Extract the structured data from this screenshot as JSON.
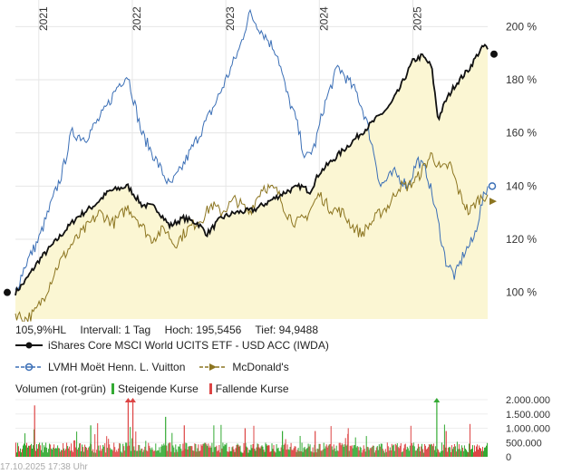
{
  "chart_data": {
    "type": "line",
    "x_axis": {
      "labels": [
        "2021",
        "2022",
        "2023",
        "2024",
        "2025"
      ]
    },
    "y_axis": {
      "ticks": [
        "200 %",
        "180 %",
        "160 %",
        "140 %",
        "120 %",
        "100 %"
      ],
      "tick_values": [
        200,
        180,
        160,
        140,
        120,
        100
      ],
      "ylim": [
        90,
        210
      ],
      "position": "right"
    },
    "grid": true,
    "time_range": [
      2020.75,
      2025.8
    ],
    "series": [
      {
        "name": "iShares Core MSCI World UCITS ETF - USD ACC (IWDA)",
        "color": "#111111",
        "filled": true,
        "fill_color": "#fbf6d3",
        "points": [
          [
            2020.75,
            100
          ],
          [
            2020.85,
            104
          ],
          [
            2021.0,
            112
          ],
          [
            2021.2,
            120
          ],
          [
            2021.4,
            128
          ],
          [
            2021.6,
            133
          ],
          [
            2021.75,
            138
          ],
          [
            2021.95,
            140
          ],
          [
            2022.1,
            133
          ],
          [
            2022.25,
            132
          ],
          [
            2022.4,
            125
          ],
          [
            2022.55,
            128
          ],
          [
            2022.7,
            126
          ],
          [
            2022.8,
            122
          ],
          [
            2022.95,
            128
          ],
          [
            2023.1,
            130
          ],
          [
            2023.3,
            131
          ],
          [
            2023.5,
            135
          ],
          [
            2023.65,
            138
          ],
          [
            2023.8,
            140
          ],
          [
            2023.9,
            138
          ],
          [
            2024.0,
            145
          ],
          [
            2024.15,
            150
          ],
          [
            2024.3,
            155
          ],
          [
            2024.45,
            160
          ],
          [
            2024.6,
            165
          ],
          [
            2024.75,
            170
          ],
          [
            2024.85,
            176
          ],
          [
            2025.0,
            187
          ],
          [
            2025.1,
            189
          ],
          [
            2025.2,
            185
          ],
          [
            2025.27,
            165
          ],
          [
            2025.35,
            172
          ],
          [
            2025.45,
            178
          ],
          [
            2025.6,
            184
          ],
          [
            2025.7,
            190
          ],
          [
            2025.77,
            193
          ],
          [
            2025.8,
            191
          ]
        ]
      },
      {
        "name": "LVMH Moët Henn. L. Vuitton",
        "color": "#3b6fb6",
        "filled": false,
        "points": [
          [
            2020.75,
            100
          ],
          [
            2020.85,
            110
          ],
          [
            2021.0,
            120
          ],
          [
            2021.1,
            130
          ],
          [
            2021.25,
            145
          ],
          [
            2021.35,
            160
          ],
          [
            2021.5,
            158
          ],
          [
            2021.7,
            168
          ],
          [
            2021.85,
            178
          ],
          [
            2021.95,
            182
          ],
          [
            2022.1,
            160
          ],
          [
            2022.25,
            150
          ],
          [
            2022.4,
            140
          ],
          [
            2022.5,
            145
          ],
          [
            2022.65,
            155
          ],
          [
            2022.8,
            165
          ],
          [
            2022.9,
            172
          ],
          [
            2023.0,
            180
          ],
          [
            2023.15,
            192
          ],
          [
            2023.25,
            205
          ],
          [
            2023.35,
            200
          ],
          [
            2023.45,
            195
          ],
          [
            2023.55,
            190
          ],
          [
            2023.65,
            175
          ],
          [
            2023.75,
            165
          ],
          [
            2023.85,
            150
          ],
          [
            2023.95,
            155
          ],
          [
            2024.05,
            170
          ],
          [
            2024.2,
            185
          ],
          [
            2024.3,
            180
          ],
          [
            2024.4,
            175
          ],
          [
            2024.5,
            165
          ],
          [
            2024.6,
            150
          ],
          [
            2024.65,
            140
          ],
          [
            2024.8,
            145
          ],
          [
            2024.95,
            140
          ],
          [
            2025.05,
            150
          ],
          [
            2025.15,
            145
          ],
          [
            2025.25,
            130
          ],
          [
            2025.35,
            112
          ],
          [
            2025.45,
            106
          ],
          [
            2025.55,
            115
          ],
          [
            2025.65,
            120
          ],
          [
            2025.75,
            135
          ],
          [
            2025.8,
            140
          ]
        ]
      },
      {
        "name": "McDonald's",
        "color": "#8c7520",
        "filled": false,
        "points": [
          [
            2020.75,
            92
          ],
          [
            2020.85,
            90
          ],
          [
            2020.95,
            92
          ],
          [
            2021.05,
            98
          ],
          [
            2021.2,
            110
          ],
          [
            2021.35,
            118
          ],
          [
            2021.5,
            124
          ],
          [
            2021.65,
            130
          ],
          [
            2021.8,
            126
          ],
          [
            2021.95,
            132
          ],
          [
            2022.05,
            128
          ],
          [
            2022.2,
            120
          ],
          [
            2022.35,
            124
          ],
          [
            2022.45,
            118
          ],
          [
            2022.6,
            124
          ],
          [
            2022.75,
            128
          ],
          [
            2022.85,
            133
          ],
          [
            2022.95,
            130
          ],
          [
            2023.1,
            135
          ],
          [
            2023.25,
            130
          ],
          [
            2023.4,
            140
          ],
          [
            2023.55,
            138
          ],
          [
            2023.65,
            130
          ],
          [
            2023.75,
            126
          ],
          [
            2023.85,
            128
          ],
          [
            2024.0,
            137
          ],
          [
            2024.1,
            132
          ],
          [
            2024.25,
            130
          ],
          [
            2024.35,
            125
          ],
          [
            2024.45,
            122
          ],
          [
            2024.55,
            126
          ],
          [
            2024.65,
            130
          ],
          [
            2024.75,
            133
          ],
          [
            2024.85,
            140
          ],
          [
            2024.95,
            140
          ],
          [
            2025.05,
            143
          ],
          [
            2025.2,
            152
          ],
          [
            2025.3,
            146
          ],
          [
            2025.4,
            148
          ],
          [
            2025.5,
            137
          ],
          [
            2025.6,
            130
          ],
          [
            2025.7,
            135
          ],
          [
            2025.8,
            137
          ]
        ]
      }
    ],
    "info": {
      "range_value": "105,9%",
      "range_label": "HL",
      "interval": "Intervall: 1 Tag",
      "high": "Hoch: 195,5456",
      "low": "Tief: 94,9488"
    },
    "volume": {
      "label": "Volumen (rot-grün)",
      "rising_label": "Steigende Kurse",
      "falling_label": "Fallende Kurse",
      "rising_color": "#33aa33",
      "falling_color": "#dd4444",
      "y_ticks": [
        "2.000.000",
        "1.500.000",
        "1.000.000",
        "500.000",
        "0"
      ],
      "tick_values": [
        2000000,
        1500000,
        1000000,
        500000,
        0
      ],
      "ylim": [
        0,
        2000000
      ],
      "typical": 400000,
      "spikes": [
        [
          2020.95,
          1800000
        ],
        [
          2021.55,
          1100000
        ],
        [
          2021.95,
          2000000
        ],
        [
          2022.0,
          2000000
        ],
        [
          2022.35,
          1400000
        ],
        [
          2022.55,
          1100000
        ],
        [
          2023.2,
          1000000
        ],
        [
          2023.6,
          900000
        ],
        [
          2023.95,
          900000
        ],
        [
          2024.3,
          800000
        ],
        [
          2025.25,
          2000000
        ],
        [
          2025.35,
          900000
        ]
      ]
    },
    "timestamp": "17.10.2025 17:38 Uhr"
  }
}
